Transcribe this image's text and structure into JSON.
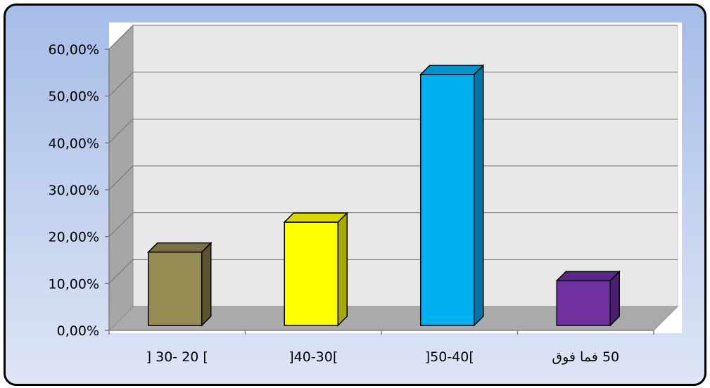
{
  "chart_data": {
    "type": "bar",
    "title": "",
    "xlabel": "",
    "ylabel": "",
    "categories": [
      "] 30- 20 [",
      "]40-30[",
      "]50-40[",
      "50 فما فوق"
    ],
    "values": [
      15.8,
      22.2,
      53.7,
      9.7
    ],
    "ylim": [
      0,
      60
    ],
    "y_ticks": [
      0,
      10,
      20,
      30,
      40,
      50,
      60
    ],
    "y_tick_labels": [
      "0,00%",
      "10,00%",
      "20,00%",
      "30,00%",
      "40,00%",
      "50,00%",
      "60,00%"
    ],
    "colors": [
      "#988c55",
      "#ffff00",
      "#00b0f0",
      "#7030a0"
    ],
    "side_colors": [
      "#5a5230",
      "#a8a800",
      "#0074a4",
      "#4a1f6e"
    ],
    "top_colors": [
      "#7a7042",
      "#d8d800",
      "#0092cc",
      "#5b2786"
    ],
    "grid": true,
    "legend": "none",
    "style": "3d-column"
  }
}
